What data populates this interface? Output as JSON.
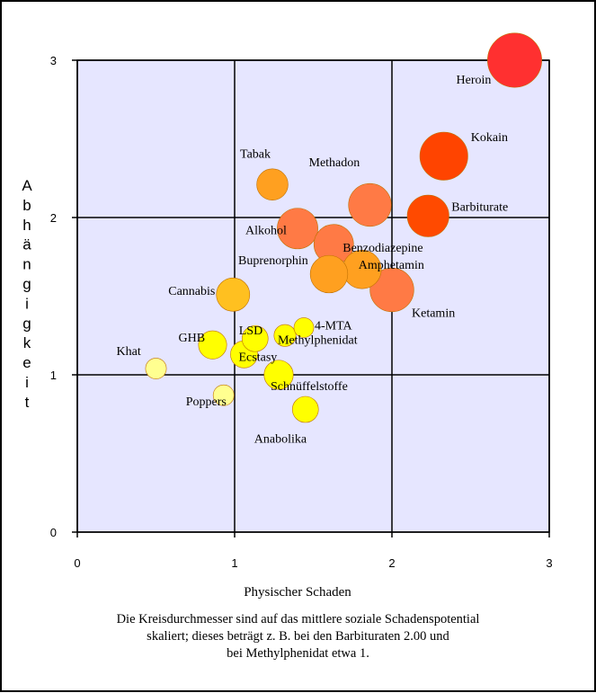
{
  "chart_data": {
    "type": "scatter",
    "title": "",
    "xlabel": "Physischer Schaden",
    "ylabel": "Abhängigkeit",
    "xlim": [
      0,
      3
    ],
    "ylim": [
      0,
      3
    ],
    "xticks": [
      "0",
      "1",
      "2",
      "3"
    ],
    "yticks": [
      "0",
      "1",
      "2",
      "3"
    ],
    "grid": true,
    "size_meaning": "mittleres soziales Schadenspotential",
    "points": [
      {
        "name": "Heroin",
        "x": 2.78,
        "y": 3.0,
        "size": 2.6,
        "color": "#ff3030"
      },
      {
        "name": "Kokain",
        "x": 2.33,
        "y": 2.39,
        "size": 2.3,
        "color": "#ff4400"
      },
      {
        "name": "Barbiturate",
        "x": 2.23,
        "y": 2.01,
        "size": 2.0,
        "color": "#ff4a00"
      },
      {
        "name": "Methadon",
        "x": 1.86,
        "y": 2.08,
        "size": 2.05,
        "color": "#ff7a45"
      },
      {
        "name": "Alkohol",
        "x": 1.4,
        "y": 1.93,
        "size": 1.95,
        "color": "#ff7a45"
      },
      {
        "name": "Ketamin",
        "x": 2.0,
        "y": 1.54,
        "size": 2.1,
        "color": "#ff7a45"
      },
      {
        "name": "Benzodiazepine",
        "x": 1.63,
        "y": 1.83,
        "size": 1.9,
        "color": "#ff7a45"
      },
      {
        "name": "Amphetamin",
        "x": 1.81,
        "y": 1.67,
        "size": 1.85,
        "color": "#ffa020"
      },
      {
        "name": "Tabak",
        "x": 1.24,
        "y": 2.21,
        "size": 1.5,
        "color": "#ffa020"
      },
      {
        "name": "Buprenorphin",
        "x": 1.6,
        "y": 1.64,
        "size": 1.8,
        "color": "#ffa020"
      },
      {
        "name": "Cannabis",
        "x": 0.99,
        "y": 1.51,
        "size": 1.6,
        "color": "#ffc020"
      },
      {
        "name": "4-MTA",
        "x": 1.44,
        "y": 1.3,
        "size": 0.95,
        "color": "#ffff00"
      },
      {
        "name": "LSD",
        "x": 1.13,
        "y": 1.23,
        "size": 1.25,
        "color": "#ffff00"
      },
      {
        "name": "Methylphenidat",
        "x": 1.32,
        "y": 1.25,
        "size": 1.05,
        "color": "#ffff00"
      },
      {
        "name": "GHB",
        "x": 0.86,
        "y": 1.19,
        "size": 1.35,
        "color": "#ffff00"
      },
      {
        "name": "Ecstasy",
        "x": 1.06,
        "y": 1.13,
        "size": 1.3,
        "color": "#ffff00"
      },
      {
        "name": "Schnüffelstoffe",
        "x": 1.28,
        "y": 1.0,
        "size": 1.4,
        "color": "#ffff00"
      },
      {
        "name": "Khat",
        "x": 0.5,
        "y": 1.04,
        "size": 1.0,
        "color": "#ffff90"
      },
      {
        "name": "Poppers",
        "x": 0.93,
        "y": 0.87,
        "size": 1.0,
        "color": "#ffff90"
      },
      {
        "name": "Anabolika",
        "x": 1.45,
        "y": 0.78,
        "size": 1.25,
        "color": "#ffff00"
      }
    ]
  },
  "caption": {
    "line1": "Die Kreisdurchmesser sind auf das mittlere soziale Schadenspotential",
    "line2": "skaliert; dieses beträgt z. B. bei den Barbituraten 2.00 und",
    "line3": "bei Methylphenidat etwa 1."
  },
  "colors": {
    "plot_background": "#e6e6ff",
    "grid": "#000000",
    "bubble_stroke": "#c07000"
  }
}
